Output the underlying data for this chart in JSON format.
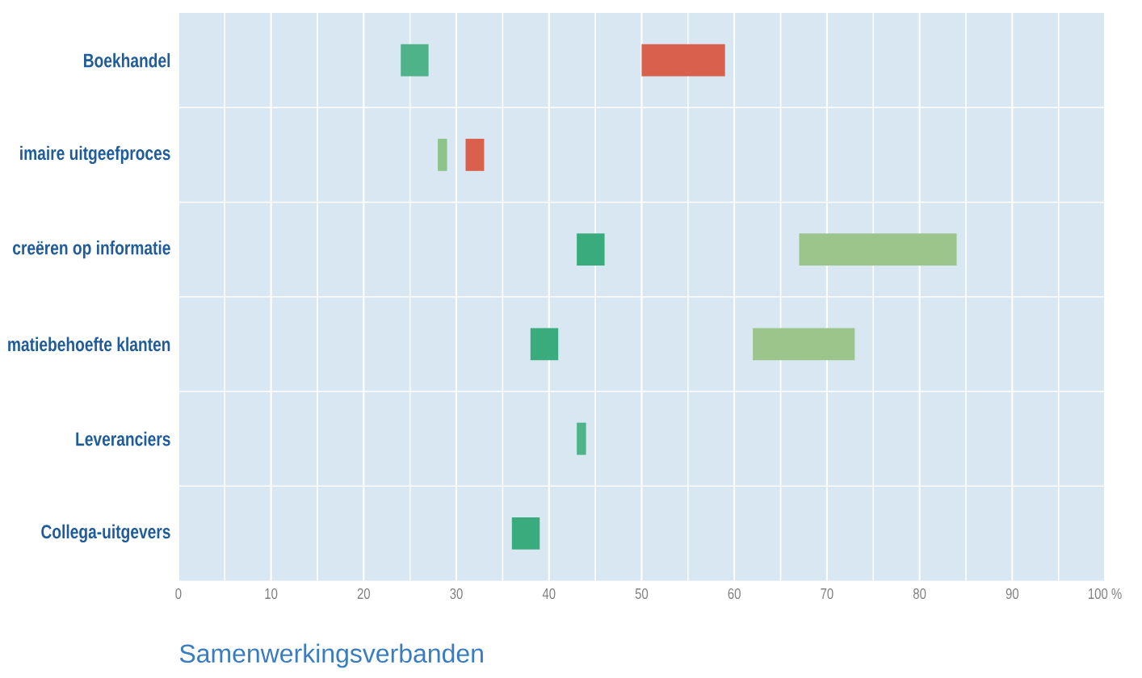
{
  "chart_data": {
    "type": "bar",
    "orientation": "horizontal",
    "title": "Samenwerkingsverbanden",
    "categories": [
      "Boekhandel",
      "imaire uitgeefproces",
      "creëren op informatie",
      "matiebehoefte klanten",
      "Leveranciers",
      "Collega-uitgevers"
    ],
    "series": [
      {
        "colors": [
          "#4fb38a",
          "#8cc48a",
          "#3aab7c",
          "#3aab7c",
          "#4fb38a",
          "#3aab7c"
        ],
        "base": [
          24,
          28,
          43,
          38,
          43,
          36
        ],
        "values": [
          3,
          1,
          3,
          3,
          1,
          3
        ]
      },
      {
        "colors": [
          "#d9604c",
          "#d9604c",
          "#9cc58c",
          "#9cc58c",
          null,
          null
        ],
        "base": [
          59,
          33,
          67,
          62,
          null,
          null
        ],
        "values": [
          -9,
          -2,
          17,
          11,
          null,
          null
        ]
      }
    ],
    "xlim": [
      0,
      100
    ],
    "xticks": [
      0,
      10,
      20,
      30,
      40,
      50,
      60,
      70,
      80,
      90,
      {
        "value": 100,
        "label": "100 %"
      }
    ],
    "grid": true
  }
}
